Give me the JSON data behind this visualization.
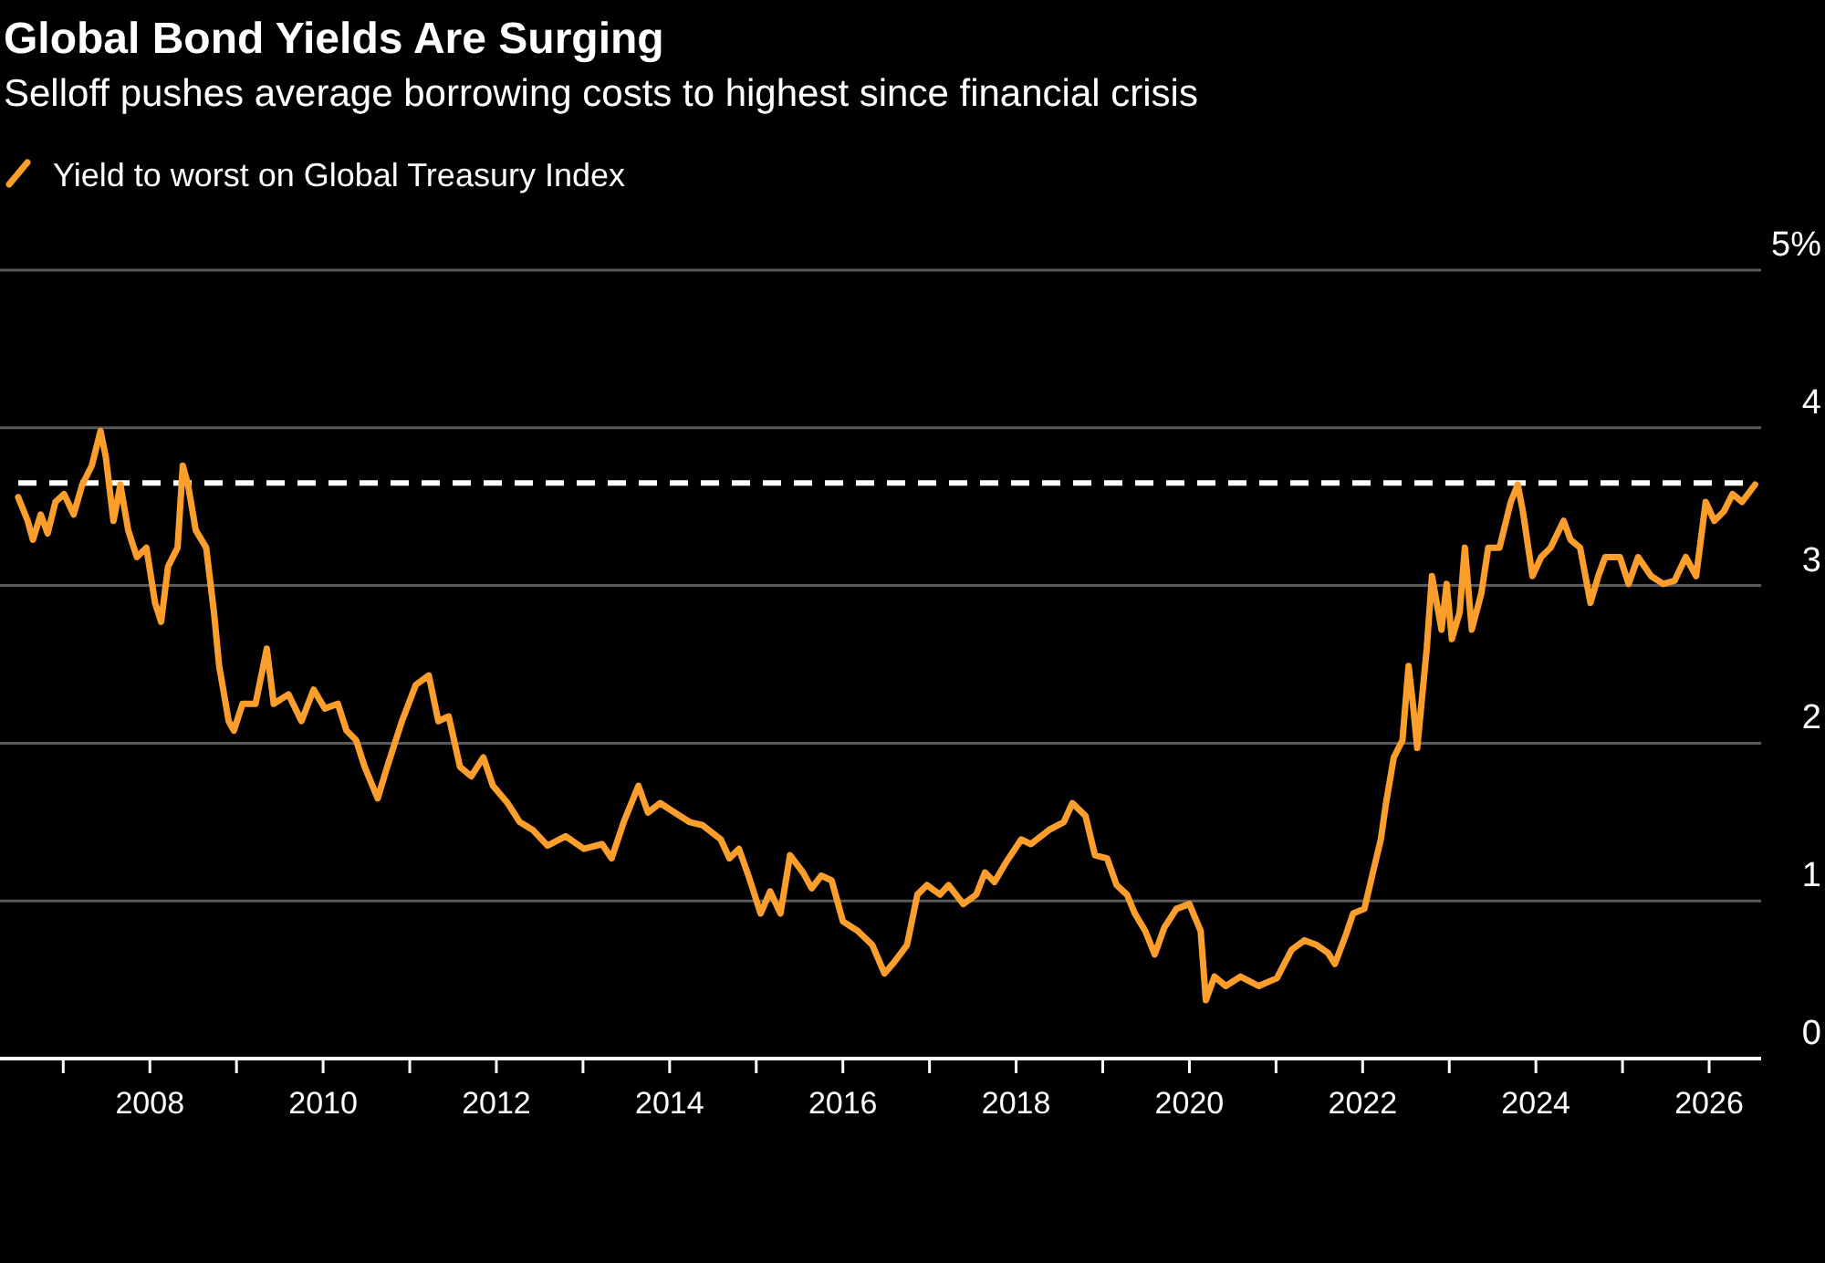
{
  "chart_data": {
    "type": "line",
    "title": "Global Bond Yields Are Surging",
    "subtitle": "Selloff pushes average borrowing costs to highest since financial crisis",
    "xlim": [
      2006.27,
      2026.6
    ],
    "xticks": [
      {
        "value": 2007,
        "label": null
      },
      {
        "value": 2008,
        "label": "2008"
      },
      {
        "value": 2009,
        "label": null
      },
      {
        "value": 2010,
        "label": "2010"
      },
      {
        "value": 2011,
        "label": null
      },
      {
        "value": 2012,
        "label": "2012"
      },
      {
        "value": 2013,
        "label": null
      },
      {
        "value": 2014,
        "label": "2014"
      },
      {
        "value": 2015,
        "label": null
      },
      {
        "value": 2016,
        "label": "2016"
      },
      {
        "value": 2017,
        "label": null
      },
      {
        "value": 2018,
        "label": "2018"
      },
      {
        "value": 2019,
        "label": null
      },
      {
        "value": 2020,
        "label": "2020"
      },
      {
        "value": 2021,
        "label": null
      },
      {
        "value": 2022,
        "label": "2022"
      },
      {
        "value": 2023,
        "label": null
      },
      {
        "value": 2024,
        "label": "2024"
      },
      {
        "value": 2025,
        "label": null
      },
      {
        "value": 2026,
        "label": "2026"
      }
    ],
    "ylim": [
      0,
      5
    ],
    "yticks": [
      0,
      1,
      2,
      3,
      4,
      {
        "value": 5,
        "label": "5%"
      }
    ],
    "grid": "y",
    "legend": "top left",
    "ref_lines": [
      {
        "axis": "y",
        "value": 3.65,
        "color": "#ffffff",
        "line_style": "dashed"
      }
    ],
    "series": [
      {
        "name": "Yield to worst on Global Treasury Index",
        "color": "#fc9e2b",
        "x": [
          2006.48,
          2006.59,
          2006.65,
          2006.74,
          2006.82,
          2006.91,
          2007.01,
          2007.12,
          2007.22,
          2007.33,
          2007.43,
          2007.49,
          2007.58,
          2007.66,
          2007.75,
          2007.85,
          2007.96,
          2008.06,
          2008.13,
          2008.21,
          2008.32,
          2008.38,
          2008.44,
          2008.53,
          2008.65,
          2008.74,
          2008.8,
          2008.91,
          2008.97,
          2009.07,
          2009.22,
          2009.35,
          2009.43,
          2009.6,
          2009.75,
          2009.89,
          2010.02,
          2010.17,
          2010.27,
          2010.38,
          2010.48,
          2010.63,
          2010.74,
          2010.91,
          2011.07,
          2011.22,
          2011.33,
          2011.45,
          2011.58,
          2011.71,
          2011.85,
          2011.96,
          2012.13,
          2012.27,
          2012.42,
          2012.59,
          2012.8,
          2013.01,
          2013.22,
          2013.33,
          2013.47,
          2013.64,
          2013.75,
          2013.89,
          2014.06,
          2014.23,
          2014.38,
          2014.59,
          2014.69,
          2014.8,
          2014.91,
          2015.05,
          2015.16,
          2015.28,
          2015.39,
          2015.54,
          2015.64,
          2015.75,
          2015.87,
          2016.0,
          2016.17,
          2016.34,
          2016.48,
          2016.59,
          2016.74,
          2016.86,
          2016.97,
          2017.12,
          2017.22,
          2017.39,
          2017.54,
          2017.64,
          2017.75,
          2017.89,
          2018.06,
          2018.17,
          2018.38,
          2018.55,
          2018.65,
          2018.8,
          2018.91,
          2019.05,
          2019.16,
          2019.28,
          2019.37,
          2019.49,
          2019.6,
          2019.71,
          2019.85,
          2020.0,
          2020.13,
          2020.19,
          2020.29,
          2020.42,
          2020.59,
          2020.8,
          2021.01,
          2021.18,
          2021.33,
          2021.47,
          2021.6,
          2021.68,
          2021.81,
          2021.89,
          2022.02,
          2022.11,
          2022.21,
          2022.27,
          2022.36,
          2022.46,
          2022.53,
          2022.59,
          2022.63,
          2022.74,
          2022.8,
          2022.91,
          2022.97,
          2023.03,
          2023.12,
          2023.18,
          2023.26,
          2023.37,
          2023.45,
          2023.58,
          2023.71,
          2023.79,
          2023.85,
          2023.96,
          2024.06,
          2024.17,
          2024.32,
          2024.4,
          2024.51,
          2024.63,
          2024.72,
          2024.8,
          2024.97,
          2025.07,
          2025.18,
          2025.33,
          2025.47,
          2025.6,
          2025.73,
          2025.85,
          2025.96,
          2026.06,
          2026.17,
          2026.27,
          2026.38,
          2026.53
        ],
        "values": [
          3.56,
          3.41,
          3.29,
          3.45,
          3.33,
          3.53,
          3.58,
          3.45,
          3.64,
          3.76,
          3.98,
          3.82,
          3.41,
          3.64,
          3.35,
          3.18,
          3.24,
          2.89,
          2.77,
          3.12,
          3.24,
          3.76,
          3.64,
          3.35,
          3.24,
          2.83,
          2.49,
          2.14,
          2.08,
          2.25,
          2.25,
          2.6,
          2.25,
          2.31,
          2.14,
          2.34,
          2.22,
          2.25,
          2.08,
          2.02,
          1.85,
          1.65,
          1.85,
          2.14,
          2.37,
          2.43,
          2.14,
          2.17,
          1.85,
          1.79,
          1.91,
          1.73,
          1.62,
          1.5,
          1.45,
          1.35,
          1.41,
          1.33,
          1.36,
          1.27,
          1.5,
          1.73,
          1.56,
          1.62,
          1.56,
          1.5,
          1.48,
          1.39,
          1.27,
          1.33,
          1.16,
          0.92,
          1.06,
          0.92,
          1.29,
          1.18,
          1.08,
          1.16,
          1.13,
          0.87,
          0.81,
          0.72,
          0.54,
          0.61,
          0.72,
          1.04,
          1.1,
          1.04,
          1.1,
          0.98,
          1.04,
          1.18,
          1.12,
          1.25,
          1.39,
          1.36,
          1.45,
          1.5,
          1.62,
          1.54,
          1.29,
          1.27,
          1.1,
          1.04,
          0.92,
          0.81,
          0.66,
          0.83,
          0.95,
          0.98,
          0.81,
          0.37,
          0.52,
          0.46,
          0.52,
          0.46,
          0.51,
          0.69,
          0.75,
          0.72,
          0.67,
          0.6,
          0.79,
          0.92,
          0.95,
          1.16,
          1.39,
          1.62,
          1.91,
          2.02,
          2.49,
          2.2,
          1.97,
          2.6,
          3.06,
          2.72,
          3.01,
          2.66,
          2.83,
          3.24,
          2.72,
          2.95,
          3.24,
          3.24,
          3.53,
          3.64,
          3.47,
          3.06,
          3.18,
          3.24,
          3.41,
          3.29,
          3.24,
          2.89,
          3.06,
          3.18,
          3.18,
          3.01,
          3.18,
          3.06,
          3.01,
          3.03,
          3.18,
          3.06,
          3.53,
          3.41,
          3.47,
          3.58,
          3.53,
          3.64
        ]
      }
    ]
  }
}
